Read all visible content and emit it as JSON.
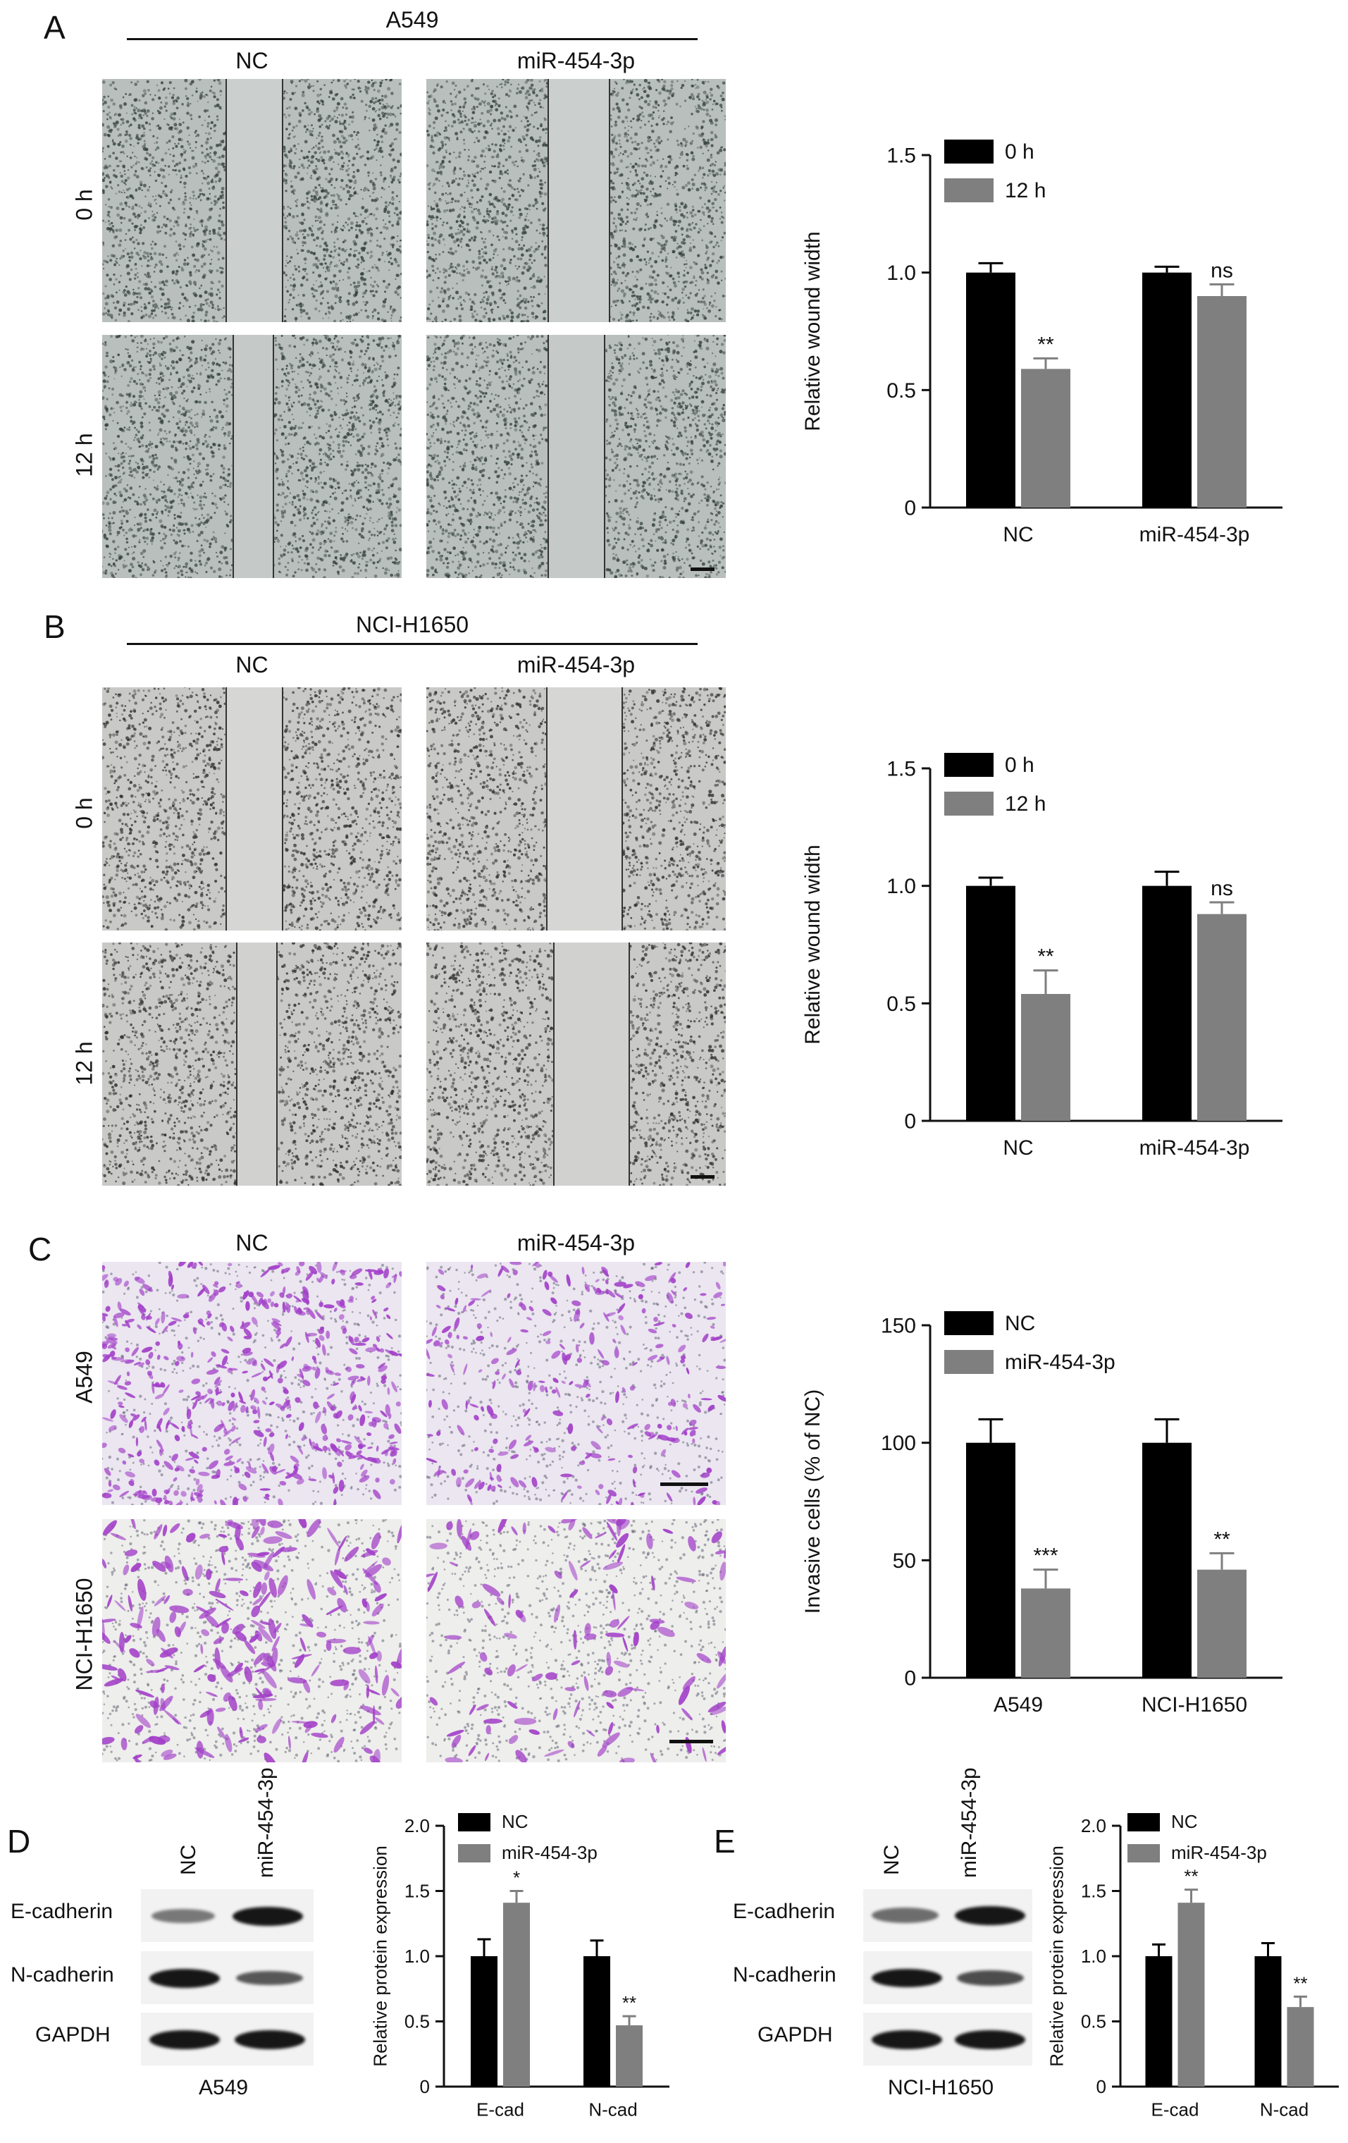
{
  "panels": {
    "A": {
      "letter": "A",
      "cell_line": "A549",
      "col_labels": [
        "NC",
        "miR-454-3p"
      ],
      "row_labels": [
        "0 h",
        "12 h"
      ]
    },
    "B": {
      "letter": "B",
      "cell_line": "NCI-H1650",
      "col_labels": [
        "NC",
        "miR-454-3p"
      ],
      "row_labels": [
        "0 h",
        "12 h"
      ]
    },
    "C": {
      "letter": "C",
      "col_labels": [
        "NC",
        "miR-454-3p"
      ],
      "row_labels": [
        "A549",
        "NCI-H1650"
      ]
    },
    "D": {
      "letter": "D",
      "lane_labels": [
        "NC",
        "miR-454-3p"
      ],
      "band_labels": [
        "E-cadherin",
        "N-cadherin",
        "GAPDH"
      ],
      "cell_line": "A549"
    },
    "E": {
      "letter": "E",
      "lane_labels": [
        "NC",
        "miR-454-3p"
      ],
      "band_labels": [
        "E-cadherin",
        "N-cadherin",
        "GAPDH"
      ],
      "cell_line": "NCI-H1650"
    }
  },
  "colors": {
    "series1": "#000000",
    "series2": "#7f7f7f",
    "stain": "#a23fc8"
  },
  "chart_data": [
    {
      "id": "A",
      "type": "bar",
      "categories": [
        "NC",
        "miR-454-3p"
      ],
      "series": [
        {
          "name": "0 h",
          "values": [
            1.0,
            1.0
          ],
          "errors": [
            0.04,
            0.025
          ]
        },
        {
          "name": "12 h",
          "values": [
            0.59,
            0.9
          ],
          "errors": [
            0.045,
            0.05
          ]
        }
      ],
      "annotations": [
        "**",
        "ns"
      ],
      "ylabel": "Relative wound width",
      "ylim": [
        0,
        1.5
      ],
      "yticks": [
        "0",
        "0.5",
        "1.0",
        "1.5"
      ],
      "legend_position": "top-left"
    },
    {
      "id": "B",
      "type": "bar",
      "categories": [
        "NC",
        "miR-454-3p"
      ],
      "series": [
        {
          "name": "0 h",
          "values": [
            1.0,
            1.0
          ],
          "errors": [
            0.035,
            0.06
          ]
        },
        {
          "name": "12 h",
          "values": [
            0.54,
            0.88
          ],
          "errors": [
            0.1,
            0.05
          ]
        }
      ],
      "annotations": [
        "**",
        "ns"
      ],
      "ylabel": "Relative wound width",
      "ylim": [
        0,
        1.5
      ],
      "yticks": [
        "0",
        "0.5",
        "1.0",
        "1.5"
      ],
      "legend_position": "top-left"
    },
    {
      "id": "C",
      "type": "bar",
      "categories": [
        "A549",
        "NCI-H1650"
      ],
      "series": [
        {
          "name": "NC",
          "values": [
            100,
            100
          ],
          "errors": [
            10,
            10
          ]
        },
        {
          "name": "miR-454-3p",
          "values": [
            38,
            46
          ],
          "errors": [
            8,
            7
          ]
        }
      ],
      "annotations": [
        "***",
        "**"
      ],
      "ylabel": "Invasive cells (% of NC)",
      "ylim": [
        0,
        150
      ],
      "yticks": [
        "0",
        "50",
        "100",
        "150"
      ],
      "legend_position": "top-left"
    },
    {
      "id": "D",
      "type": "bar",
      "categories": [
        "E-cad",
        "N-cad"
      ],
      "series": [
        {
          "name": "NC",
          "values": [
            1.0,
            1.0
          ],
          "errors": [
            0.13,
            0.12
          ]
        },
        {
          "name": "miR-454-3p",
          "values": [
            1.41,
            0.47
          ],
          "errors": [
            0.09,
            0.07
          ]
        }
      ],
      "annotations": [
        "*",
        "**"
      ],
      "ylabel": "Relative protein expression",
      "ylim": [
        0,
        2.0
      ],
      "yticks": [
        "0",
        "0.5",
        "1.0",
        "1.5",
        "2.0"
      ],
      "legend_position": "top-left"
    },
    {
      "id": "E",
      "type": "bar",
      "categories": [
        "E-cad",
        "N-cad"
      ],
      "series": [
        {
          "name": "NC",
          "values": [
            1.0,
            1.0
          ],
          "errors": [
            0.09,
            0.1
          ]
        },
        {
          "name": "miR-454-3p",
          "values": [
            1.41,
            0.61
          ],
          "errors": [
            0.1,
            0.08
          ]
        }
      ],
      "annotations": [
        "**",
        "**"
      ],
      "ylabel": "Relative protein expression",
      "ylim": [
        0,
        2.0
      ],
      "yticks": [
        "0",
        "0.5",
        "1.0",
        "1.5",
        "2.0"
      ],
      "legend_position": "top-left"
    }
  ]
}
